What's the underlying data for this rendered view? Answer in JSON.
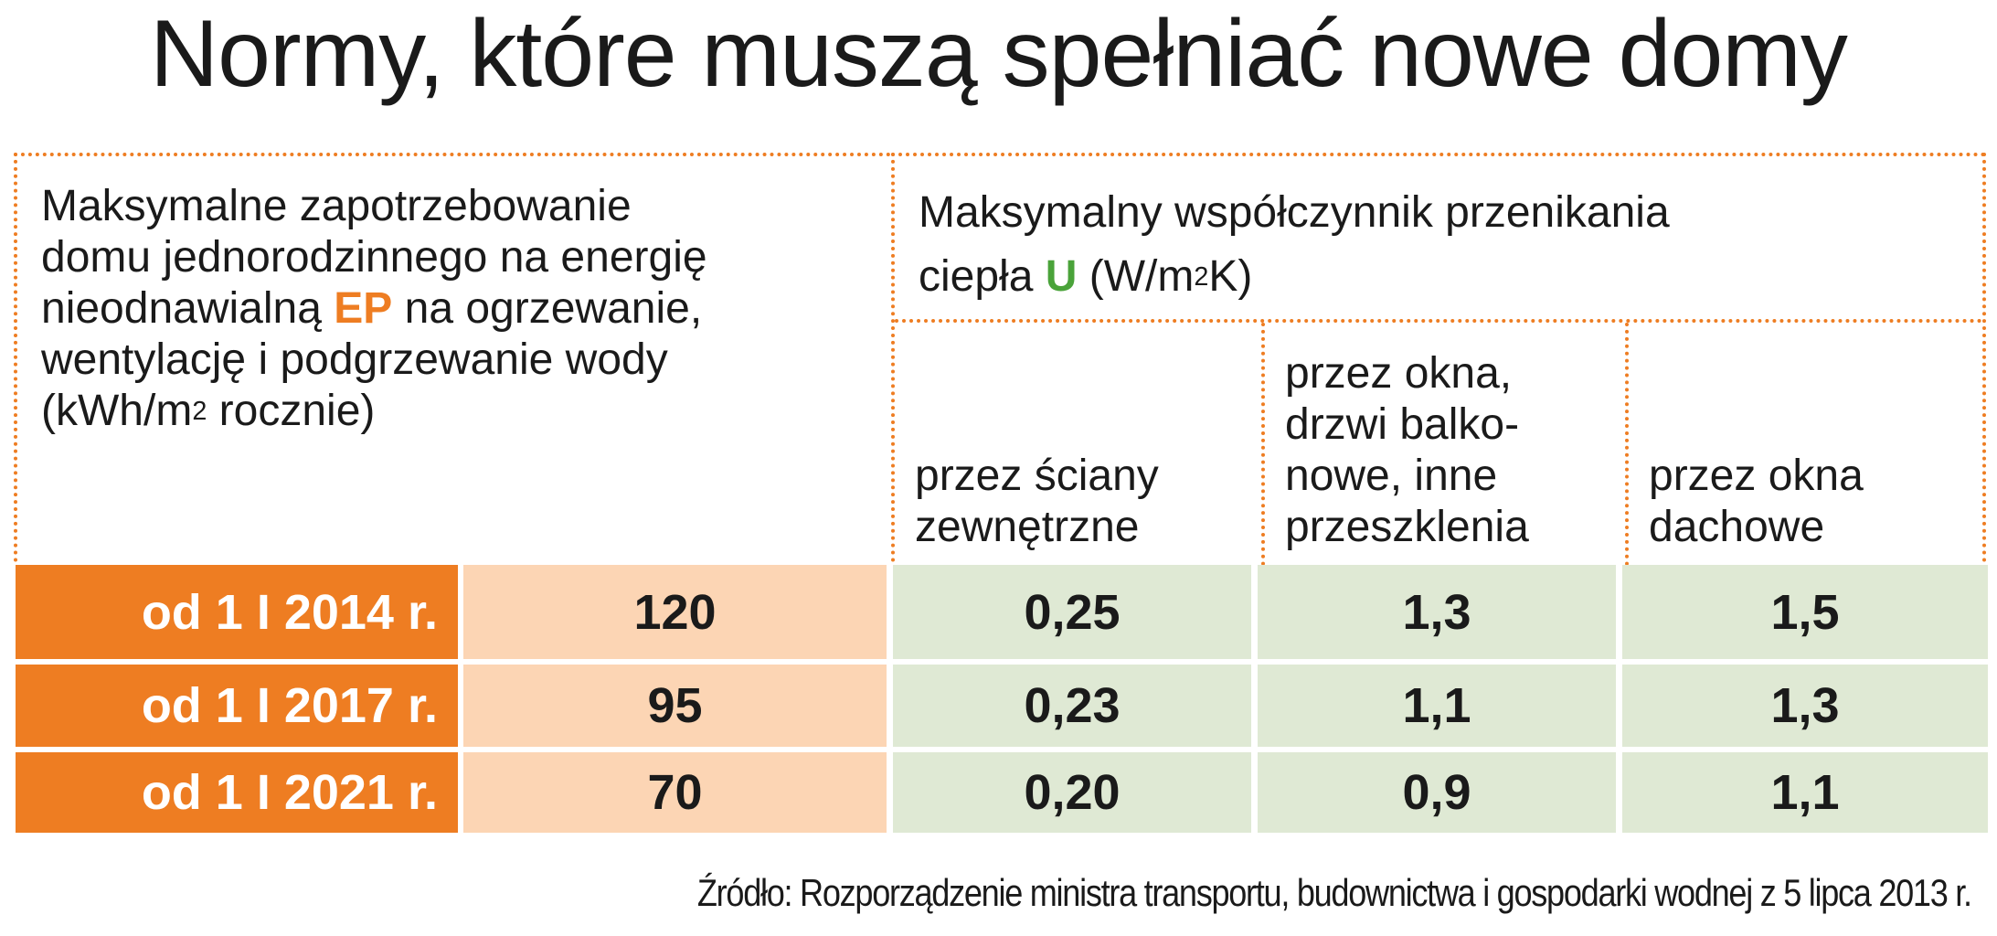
{
  "title": "Normy, które muszą spełniać nowe domy",
  "header": {
    "ep": {
      "line1": "Maksymalne zapotrzebowanie",
      "line2": "domu jednorodzinnego na energię",
      "line3_before": "nieodnawialną ",
      "ep_mark": "EP",
      "line3_after": " na ogrzewanie,",
      "line4": "wentylację i podgrzewanie wody",
      "unit_before": "(kWh/m",
      "unit_sup": "2",
      "unit_after": " rocznie)"
    },
    "u": {
      "line1": "Maksymalny współczynnik przenikania",
      "line2_before": "ciepła ",
      "u_mark": "U",
      "unit_before": " (W/m",
      "unit_sup": "2",
      "unit_after": "K)"
    },
    "sub": [
      {
        "line1": "przez ściany",
        "line2": "zewnętrzne"
      },
      {
        "line1": "przez okna,",
        "line2": "drzwi balko-",
        "line3": "nowe, inne",
        "line4": "przeszklenia"
      },
      {
        "line1": "przez okna",
        "line2": "dachowe"
      }
    ]
  },
  "rows": [
    {
      "date": "od 1 I 2014 r.",
      "ep": "120",
      "walls": "0,25",
      "windows": "1,3",
      "roof_windows": "1,5"
    },
    {
      "date": "od 1 I 2017 r.",
      "ep": "95",
      "walls": "0,23",
      "windows": "1,1",
      "roof_windows": "1,3"
    },
    {
      "date": "od 1 I 2021 r.",
      "ep": "70",
      "walls": "0,20",
      "windows": "0,9",
      "roof_windows": "1,1"
    }
  ],
  "colors": {
    "accent_orange": "#ee7d22",
    "ep_bg": "#fcd5b4",
    "u_bg": "#dfe9d4",
    "u_green": "#4aa33a"
  },
  "source": "Źródło: Rozporządzenie ministra transportu, budownictwa i gospodarki wodnej z 5 lipca 2013 r."
}
